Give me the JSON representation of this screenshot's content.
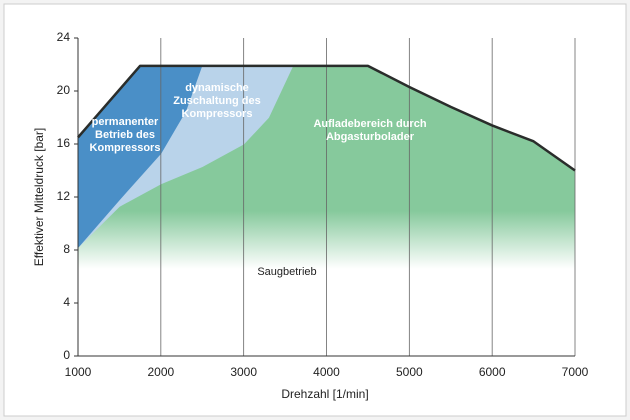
{
  "chart_data": {
    "type": "area",
    "xlabel": "Drehzahl [1/min]",
    "ylabel": "Effektiver Mitteldruck [bar]",
    "x": [
      1000,
      1750,
      2000,
      3000,
      4000,
      4500,
      5000,
      5500,
      6000,
      6500,
      7000
    ],
    "series": [
      {
        "color": "#2a2d2b",
        "values": [
          16.5,
          21.9,
          21.9,
          21.9,
          21.9,
          21.9,
          20.3,
          18.8,
          17.4,
          16.2,
          14.0
        ]
      }
    ],
    "regions": [
      {
        "name": "Aufladebereich durch\nAbgasturbolader",
        "color": "#86c99c"
      },
      {
        "name": "dynamische\nZuschaltung des\nKompressors",
        "color": "#b9d3ea",
        "x": [
          1000,
          1500,
          2000,
          2500,
          3000,
          3300,
          3600
        ],
        "values": [
          8.2,
          11.3,
          13.0,
          14.3,
          16.0,
          18.0,
          22.0
        ]
      },
      {
        "name": "permanenter\nBetrieb des\nKompressors",
        "color": "#4a8fc7",
        "x": [
          1000,
          1500,
          2000,
          2300,
          2500
        ],
        "values": [
          8.2,
          11.8,
          15.3,
          18.5,
          22.0
        ]
      }
    ],
    "annotation": "Saugbetrieb",
    "xlim": [
      1000,
      7000
    ],
    "xticks": [
      1000,
      2000,
      3000,
      4000,
      5000,
      6000,
      7000
    ],
    "ylim": [
      0,
      24
    ],
    "yticks": [
      0,
      4,
      8,
      12,
      16,
      20,
      24
    ],
    "grid": "x"
  }
}
